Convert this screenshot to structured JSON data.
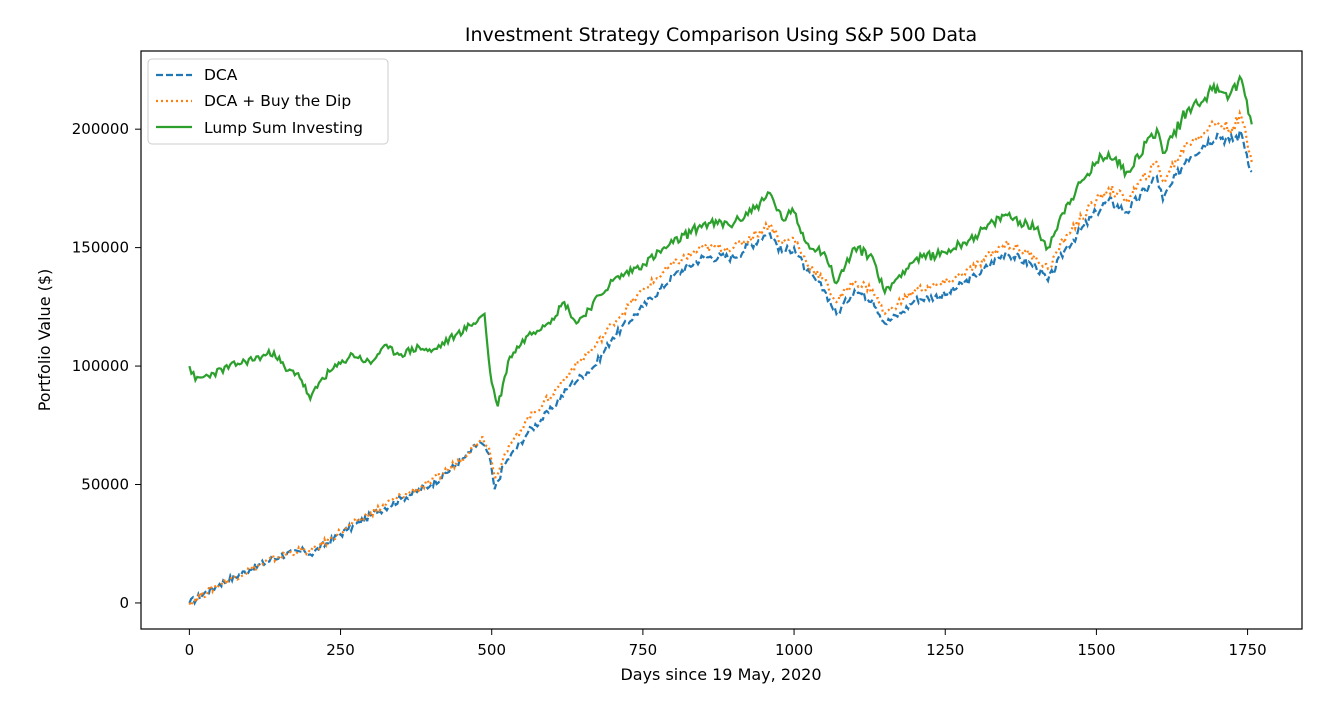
{
  "chart_data": {
    "type": "line",
    "title": "Investment Strategy Comparison Using S&P 500 Data",
    "xlabel": "Days since 19 May, 2020",
    "ylabel": "Portfolio Value ($)",
    "xlim": [
      -80,
      1840
    ],
    "ylim": [
      -11000,
      233000
    ],
    "xticks": [
      0,
      250,
      500,
      750,
      1000,
      1250,
      1500,
      1750
    ],
    "xtick_labels": [
      "0",
      "250",
      "500",
      "750",
      "1000",
      "1250",
      "1500",
      "1750"
    ],
    "yticks": [
      0,
      50000,
      100000,
      150000,
      200000
    ],
    "ytick_labels": [
      "0",
      "50000",
      "100000",
      "150000",
      "200000"
    ],
    "grid": false,
    "legend_position": "top-left",
    "series": [
      {
        "name": "DCA",
        "color": "#1f77b4",
        "style": "dashed",
        "points": [
          [
            0,
            0
          ],
          [
            50,
            8000
          ],
          [
            100,
            14000
          ],
          [
            150,
            20000
          ],
          [
            190,
            22000
          ],
          [
            200,
            20500
          ],
          [
            250,
            29000
          ],
          [
            300,
            37000
          ],
          [
            350,
            44000
          ],
          [
            400,
            50000
          ],
          [
            450,
            60000
          ],
          [
            480,
            68000
          ],
          [
            495,
            63000
          ],
          [
            505,
            48000
          ],
          [
            520,
            58000
          ],
          [
            560,
            72000
          ],
          [
            600,
            82000
          ],
          [
            630,
            92000
          ],
          [
            670,
            100000
          ],
          [
            700,
            112000
          ],
          [
            750,
            125000
          ],
          [
            800,
            138000
          ],
          [
            850,
            146000
          ],
          [
            900,
            146000
          ],
          [
            950,
            155000
          ],
          [
            960,
            156000
          ],
          [
            980,
            148000
          ],
          [
            1000,
            150000
          ],
          [
            1020,
            140000
          ],
          [
            1050,
            132000
          ],
          [
            1070,
            122000
          ],
          [
            1100,
            132000
          ],
          [
            1130,
            128000
          ],
          [
            1150,
            118000
          ],
          [
            1180,
            123000
          ],
          [
            1200,
            128000
          ],
          [
            1250,
            130000
          ],
          [
            1300,
            138000
          ],
          [
            1350,
            148000
          ],
          [
            1400,
            142000
          ],
          [
            1420,
            136000
          ],
          [
            1450,
            150000
          ],
          [
            1500,
            165000
          ],
          [
            1520,
            170000
          ],
          [
            1550,
            165000
          ],
          [
            1600,
            180000
          ],
          [
            1610,
            170000
          ],
          [
            1650,
            188000
          ],
          [
            1700,
            198000
          ],
          [
            1720,
            195000
          ],
          [
            1740,
            198000
          ],
          [
            1757,
            182000
          ]
        ]
      },
      {
        "name": "DCA + Buy the Dip",
        "color": "#ff7f0e",
        "style": "dotted",
        "points": [
          [
            0,
            0
          ],
          [
            50,
            8000
          ],
          [
            100,
            14000
          ],
          [
            150,
            20000
          ],
          [
            190,
            22500
          ],
          [
            200,
            21500
          ],
          [
            250,
            30000
          ],
          [
            300,
            38000
          ],
          [
            350,
            45000
          ],
          [
            400,
            51000
          ],
          [
            450,
            61000
          ],
          [
            485,
            70000
          ],
          [
            495,
            66000
          ],
          [
            505,
            53000
          ],
          [
            520,
            62000
          ],
          [
            560,
            78000
          ],
          [
            600,
            88000
          ],
          [
            630,
            98000
          ],
          [
            670,
            108000
          ],
          [
            700,
            118000
          ],
          [
            750,
            132000
          ],
          [
            800,
            143000
          ],
          [
            850,
            150000
          ],
          [
            900,
            150000
          ],
          [
            950,
            158000
          ],
          [
            960,
            160000
          ],
          [
            980,
            152000
          ],
          [
            1000,
            154000
          ],
          [
            1020,
            144000
          ],
          [
            1050,
            136000
          ],
          [
            1070,
            127000
          ],
          [
            1100,
            136000
          ],
          [
            1130,
            132000
          ],
          [
            1150,
            122000
          ],
          [
            1180,
            128000
          ],
          [
            1200,
            132000
          ],
          [
            1250,
            135000
          ],
          [
            1300,
            142000
          ],
          [
            1350,
            152000
          ],
          [
            1400,
            146000
          ],
          [
            1420,
            141000
          ],
          [
            1450,
            155000
          ],
          [
            1500,
            170000
          ],
          [
            1520,
            175000
          ],
          [
            1550,
            170000
          ],
          [
            1600,
            186000
          ],
          [
            1610,
            178000
          ],
          [
            1650,
            194000
          ],
          [
            1700,
            203000
          ],
          [
            1720,
            200000
          ],
          [
            1740,
            205000
          ],
          [
            1757,
            186000
          ]
        ]
      },
      {
        "name": "Lump Sum Investing",
        "color": "#2ca02c",
        "style": "solid",
        "points": [
          [
            0,
            100000
          ],
          [
            10,
            94000
          ],
          [
            40,
            97000
          ],
          [
            80,
            101000
          ],
          [
            120,
            104000
          ],
          [
            140,
            106000
          ],
          [
            160,
            98000
          ],
          [
            180,
            97000
          ],
          [
            200,
            86000
          ],
          [
            220,
            95000
          ],
          [
            250,
            101000
          ],
          [
            270,
            105000
          ],
          [
            300,
            101000
          ],
          [
            320,
            108000
          ],
          [
            350,
            105000
          ],
          [
            380,
            108000
          ],
          [
            400,
            106000
          ],
          [
            440,
            113000
          ],
          [
            470,
            118000
          ],
          [
            488,
            122000
          ],
          [
            495,
            103000
          ],
          [
            500,
            93000
          ],
          [
            510,
            83000
          ],
          [
            530,
            104000
          ],
          [
            560,
            113000
          ],
          [
            600,
            120000
          ],
          [
            620,
            127000
          ],
          [
            640,
            118000
          ],
          [
            680,
            130000
          ],
          [
            700,
            136000
          ],
          [
            750,
            143000
          ],
          [
            800,
            152000
          ],
          [
            850,
            160000
          ],
          [
            900,
            160000
          ],
          [
            950,
            170000
          ],
          [
            960,
            173000
          ],
          [
            980,
            162000
          ],
          [
            1000,
            165000
          ],
          [
            1020,
            152000
          ],
          [
            1050,
            148000
          ],
          [
            1070,
            135000
          ],
          [
            1100,
            150000
          ],
          [
            1130,
            146000
          ],
          [
            1150,
            131000
          ],
          [
            1180,
            140000
          ],
          [
            1200,
            145000
          ],
          [
            1250,
            148000
          ],
          [
            1300,
            155000
          ],
          [
            1350,
            164000
          ],
          [
            1400,
            158000
          ],
          [
            1420,
            150000
          ],
          [
            1450,
            168000
          ],
          [
            1500,
            186000
          ],
          [
            1520,
            190000
          ],
          [
            1550,
            182000
          ],
          [
            1600,
            200000
          ],
          [
            1610,
            190000
          ],
          [
            1650,
            208000
          ],
          [
            1700,
            218000
          ],
          [
            1720,
            214000
          ],
          [
            1740,
            221000
          ],
          [
            1757,
            202000
          ]
        ]
      }
    ]
  }
}
